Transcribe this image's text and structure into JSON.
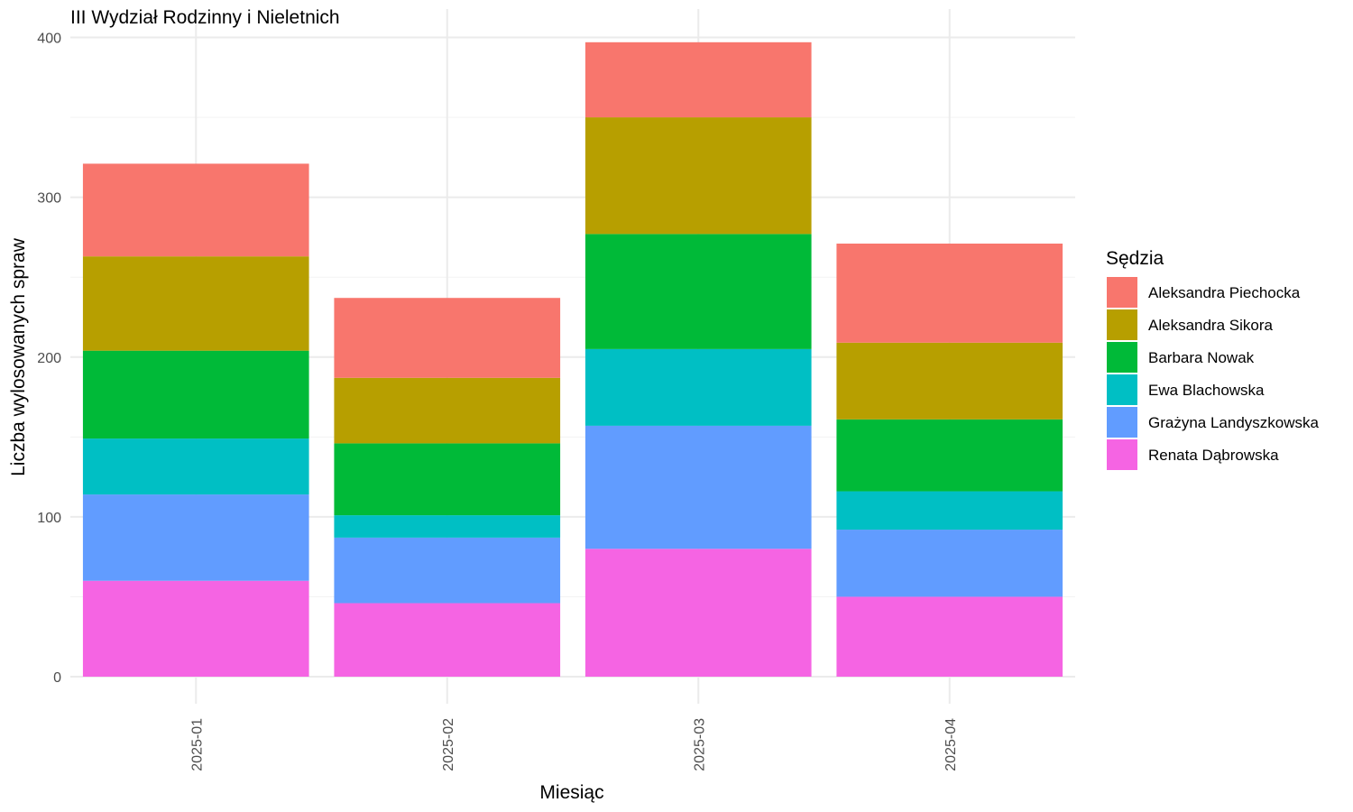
{
  "chart_data": {
    "type": "bar",
    "stacked": true,
    "title": "III Wydział Rodzinny i Nieletnich",
    "xlabel": "Miesiąc",
    "ylabel": "Liczba wylosowanych spraw",
    "categories": [
      "2025-01",
      "2025-02",
      "2025-03",
      "2025-04"
    ],
    "ylim": [
      0,
      410
    ],
    "yticks": [
      0,
      100,
      200,
      300,
      400
    ],
    "grid": true,
    "legend": {
      "title": "Sędzia",
      "position": "right"
    },
    "stack_order_bottom_to_top": [
      "Renata Dąbrowska",
      "Grażyna Landyszkowska",
      "Ewa Blachowska",
      "Barbara Nowak",
      "Aleksandra Sikora",
      "Aleksandra Piechocka"
    ],
    "series": [
      {
        "name": "Aleksandra Piechocka",
        "color": "#F8766D",
        "values": [
          58,
          50,
          47,
          62
        ]
      },
      {
        "name": "Aleksandra Sikora",
        "color": "#B79F00",
        "values": [
          59,
          41,
          73,
          48
        ]
      },
      {
        "name": "Barbara Nowak",
        "color": "#00BA38",
        "values": [
          55,
          45,
          72,
          45
        ]
      },
      {
        "name": "Ewa Blachowska",
        "color": "#00BFC4",
        "values": [
          35,
          14,
          48,
          24
        ]
      },
      {
        "name": "Grażyna Landyszkowska",
        "color": "#619CFF",
        "values": [
          54,
          41,
          77,
          42
        ]
      },
      {
        "name": "Renata Dąbrowska",
        "color": "#F564E3",
        "values": [
          60,
          46,
          80,
          50
        ]
      }
    ]
  }
}
